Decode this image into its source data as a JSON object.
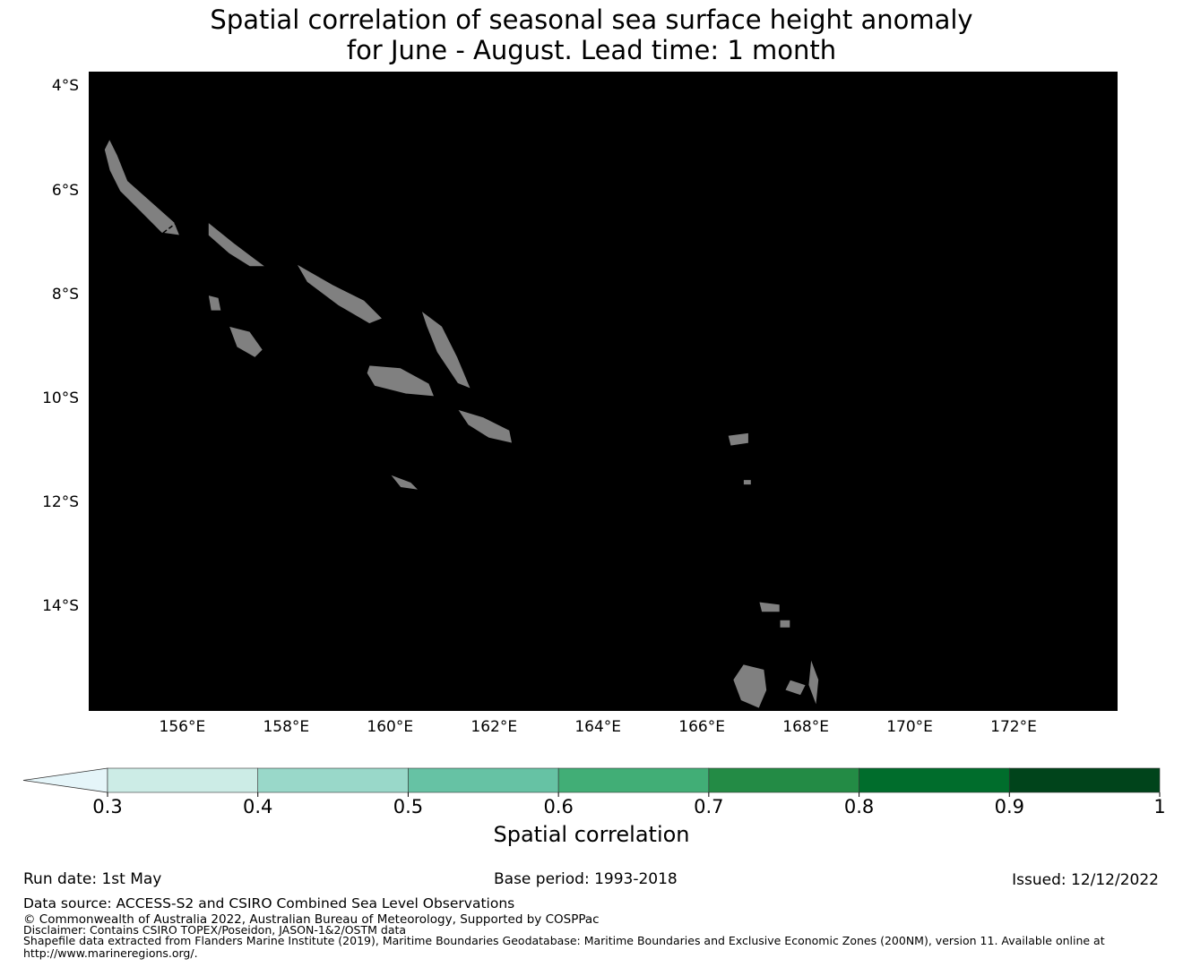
{
  "title": {
    "line1": "Spatial correlation of seasonal sea surface height anomaly",
    "line2": "for June - August. Lead time: 1 month"
  },
  "map": {
    "lon_range": [
      154.2,
      174.0
    ],
    "lat_range": [
      -16.0,
      -3.7
    ],
    "lat_ticks": [
      {
        "value": -4,
        "label": "4°S"
      },
      {
        "value": -6,
        "label": "6°S"
      },
      {
        "value": -8,
        "label": "8°S"
      },
      {
        "value": -10,
        "label": "10°S"
      },
      {
        "value": -12,
        "label": "12°S"
      },
      {
        "value": -14,
        "label": "14°S"
      }
    ],
    "lon_ticks": [
      {
        "value": 156,
        "label": "156°E"
      },
      {
        "value": 158,
        "label": "158°E"
      },
      {
        "value": 160,
        "label": "160°E"
      },
      {
        "value": 162,
        "label": "162°E"
      },
      {
        "value": 164,
        "label": "164°E"
      },
      {
        "value": 166,
        "label": "166°E"
      },
      {
        "value": 168,
        "label": "168°E"
      },
      {
        "value": 170,
        "label": "170°E"
      },
      {
        "value": 172,
        "label": "172°E"
      }
    ],
    "land_color": "#808080",
    "eez_line": "dashed-black"
  },
  "colorbar": {
    "label": "Spatial correlation",
    "colors": [
      "#e5f5f9",
      "#ccece6",
      "#99d8c9",
      "#66c2a4",
      "#41ae76",
      "#238b45",
      "#006d2c",
      "#00441b"
    ],
    "tick_labels": [
      "0.3",
      "0.4",
      "0.5",
      "0.6",
      "0.7",
      "0.8",
      "0.9",
      "1"
    ]
  },
  "footer": {
    "run_date": "Run date: 1st May",
    "base_period": "Base period: 1993-2018",
    "issued": "Issued: 12/12/2022",
    "data_source": "Data source: ACCESS-S2 and CSIRO Combined Sea Level Observations",
    "copyright": "© Commonwealth of Australia 2022, Australian Bureau of Meteorology, Supported by COSPPac",
    "disclaimer": "Disclaimer: Contains CSIRO TOPEX/Poseidon, JASON-1&2/OSTM data",
    "shapefile_line1": "Shapefile data extracted from Flanders Marine Institute (2019), Maritime Boundaries Geodatabase: Maritime Boundaries and Exclusive Economic Zones (200NM), version 11. Available online at",
    "shapefile_line2": "http://www.marineregions.org/."
  }
}
